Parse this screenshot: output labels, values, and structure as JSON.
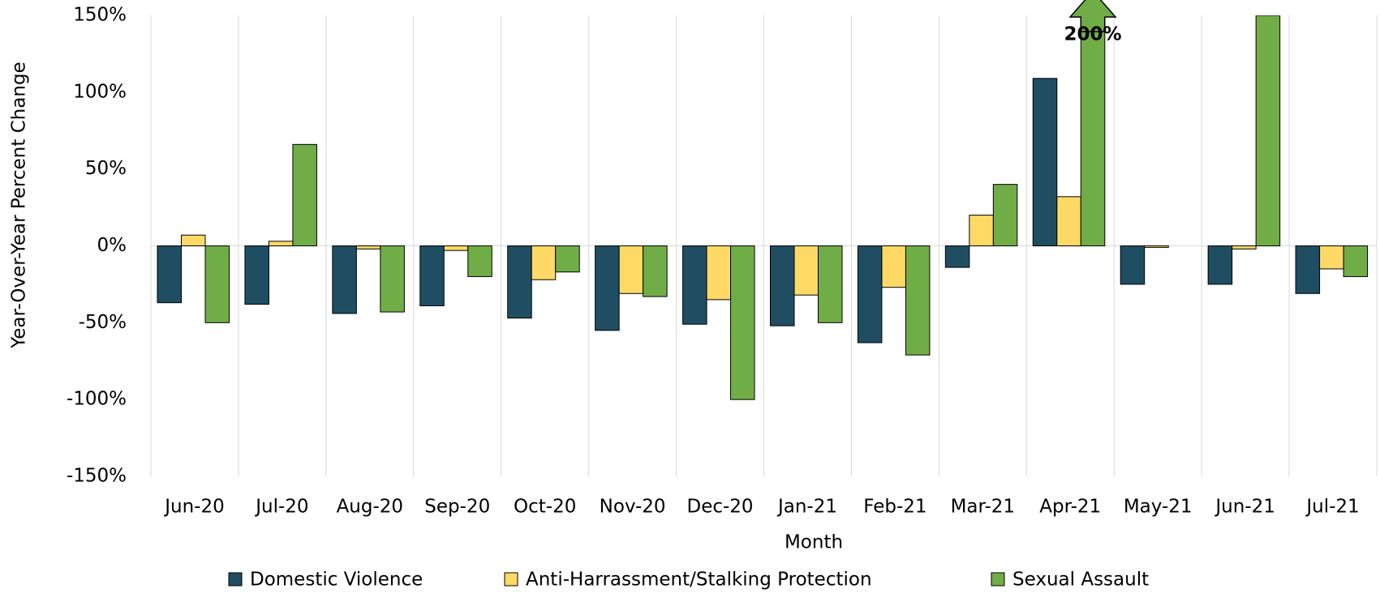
{
  "chart_data": {
    "type": "bar",
    "x_label": "Month",
    "y_label": "Year-Over-Year Percent Change",
    "categories": [
      "Jun-20",
      "Jul-20",
      "Aug-20",
      "Sep-20",
      "Oct-20",
      "Nov-20",
      "Dec-20",
      "Jan-21",
      "Feb-21",
      "Mar-21",
      "Apr-21",
      "May-21",
      "Jun-21",
      "Jul-21"
    ],
    "series": [
      {
        "name": "Domestic Violence",
        "color": "#1f4e63",
        "values": [
          -37,
          -38,
          -44,
          -39,
          -47,
          -55,
          -51,
          -52,
          -63,
          -14,
          109,
          -25,
          -25,
          -31
        ]
      },
      {
        "name": "Anti-Harrassment/Stalking Protection",
        "color": "#ffd966",
        "values": [
          7,
          3,
          -2,
          -3,
          -22,
          -31,
          -35,
          -32,
          -27,
          20,
          32,
          -1,
          -2,
          -15
        ]
      },
      {
        "name": "Sexual Assault",
        "color": "#70ad47",
        "values": [
          -50,
          66,
          -43,
          -20,
          -17,
          -33,
          -100,
          -50,
          -71,
          40,
          200,
          null,
          150,
          -20
        ],
        "value_labels": [
          null,
          null,
          null,
          null,
          null,
          null,
          null,
          null,
          null,
          null,
          "200%",
          null,
          null,
          null
        ]
      }
    ],
    "ylim": [
      -150,
      150
    ],
    "yticks": [
      {
        "value": -150,
        "label": "-150%"
      },
      {
        "value": -100,
        "label": "-100%"
      },
      {
        "value": -50,
        "label": "-50%"
      },
      {
        "value": 0,
        "label": "0%"
      },
      {
        "value": 50,
        "label": "50%"
      },
      {
        "value": 100,
        "label": "100%"
      },
      {
        "value": 150,
        "label": "150%"
      }
    ],
    "grid": "vertical",
    "legend": "bottom"
  }
}
